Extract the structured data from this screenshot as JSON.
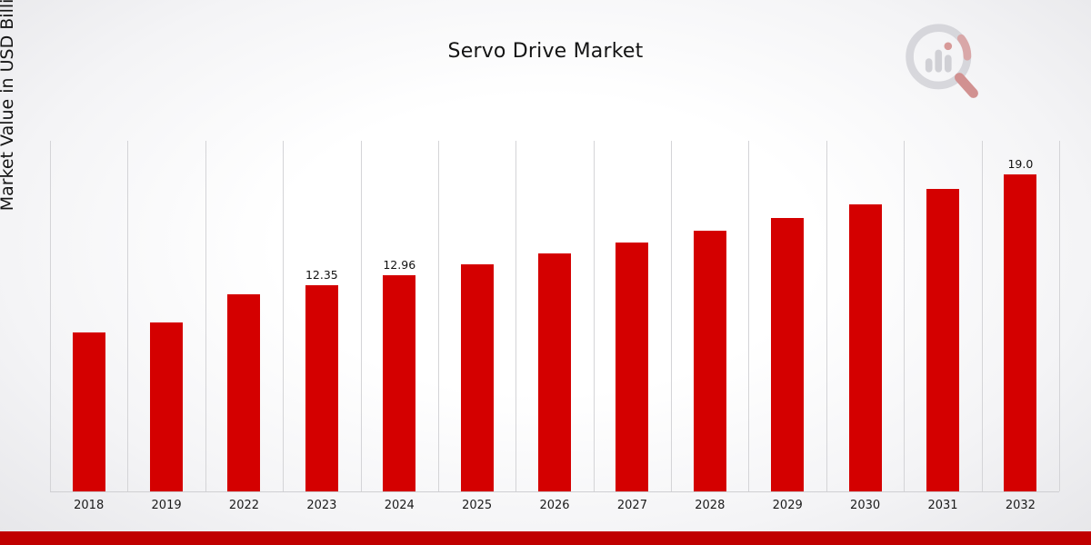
{
  "header": {
    "title": "Servo Drive Market"
  },
  "axes": {
    "ylabel": "Market Value in USD Billion"
  },
  "colors": {
    "bar": "#d40000",
    "footer": "#c00000",
    "grid": "#d4d4d7"
  },
  "logo": {
    "name": "bar-chart-magnifier-logo"
  },
  "chart_data": {
    "type": "bar",
    "title": "Servo Drive Market",
    "ylabel": "Market Value in USD Billion",
    "xlabel": "",
    "categories": [
      "2018",
      "2019",
      "2022",
      "2023",
      "2024",
      "2025",
      "2026",
      "2027",
      "2028",
      "2029",
      "2030",
      "2031",
      "2032"
    ],
    "values": [
      9.5,
      10.1,
      11.8,
      12.35,
      12.96,
      13.6,
      14.25,
      14.9,
      15.6,
      16.4,
      17.2,
      18.1,
      19.0
    ],
    "data_labels": [
      "",
      "",
      "",
      "12.35",
      "12.96",
      "",
      "",
      "",
      "",
      "",
      "",
      "",
      "19.0"
    ],
    "ylim": [
      0,
      21
    ],
    "grid": "vertical",
    "legend": "none"
  }
}
